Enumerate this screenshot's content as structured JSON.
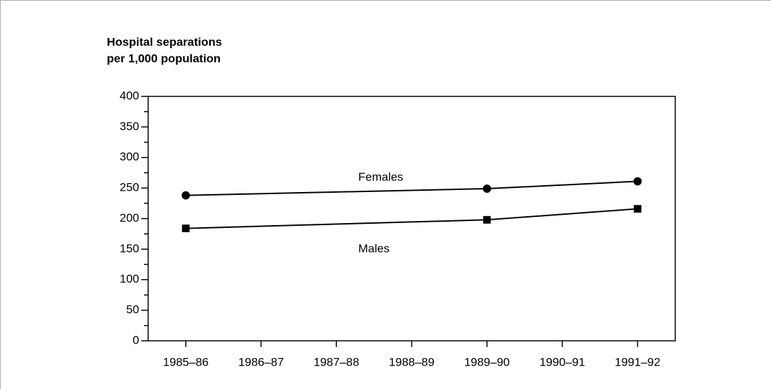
{
  "chart_data": {
    "type": "line",
    "title": [
      "Hospital separations",
      "per 1,000 population"
    ],
    "x": [
      1985,
      1989,
      1991
    ],
    "xlim": [
      1984.5,
      1991.5
    ],
    "xticks": [
      {
        "value": 1985,
        "label": "1985–86"
      },
      {
        "value": 1986,
        "label": "1986–87"
      },
      {
        "value": 1987,
        "label": "1987–88"
      },
      {
        "value": 1988,
        "label": "1988–89"
      },
      {
        "value": 1989,
        "label": "1989–90"
      },
      {
        "value": 1990,
        "label": "1990–91"
      },
      {
        "value": 1991,
        "label": "1991–92"
      }
    ],
    "ylim": [
      0,
      400
    ],
    "yticks": [
      0,
      50,
      100,
      150,
      200,
      250,
      300,
      350,
      400
    ],
    "minor_yticks": [
      25,
      75,
      125,
      175,
      225,
      275,
      325,
      375
    ],
    "series": [
      {
        "name": "Females",
        "color": "#000000",
        "marker": "circle",
        "values": [
          238,
          249,
          261
        ]
      },
      {
        "name": "Males",
        "color": "#000000",
        "marker": "square",
        "values": [
          184,
          198,
          216
        ]
      }
    ]
  }
}
